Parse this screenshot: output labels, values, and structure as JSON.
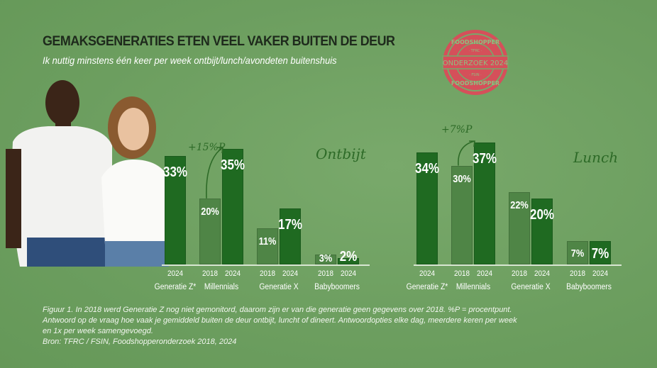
{
  "header": {
    "title": "GEMAKSGENERATIES ETEN VEEL VAKER BUITEN DE DEUR",
    "subtitle": "Ik nuttig minstens één keer per week ontbijt/lunch/avondeten buitenshuis"
  },
  "stamp": {
    "top": "FOODSHOPPER",
    "tfrc": "· TFRC ·",
    "center": "ONDERZOEK 2024",
    "fsin": "· FSIN ·",
    "bottom": "FOODSHOPPER",
    "color": "#d5505a"
  },
  "colors": {
    "bar_2018": "#4f8546",
    "bar_2024": "#1f6a21",
    "background": "#6fa062"
  },
  "chart_data": [
    {
      "type": "bar",
      "title": "Ontbijt",
      "annotation": "+15%P",
      "unit": "%",
      "ylim": [
        0,
        40
      ],
      "groups": [
        {
          "name": "Generatie Z*",
          "bars": [
            {
              "year": "2024",
              "value": 33
            }
          ]
        },
        {
          "name": "Millennials",
          "bars": [
            {
              "year": "2018",
              "value": 20
            },
            {
              "year": "2024",
              "value": 35
            }
          ]
        },
        {
          "name": "Generatie X",
          "bars": [
            {
              "year": "2018",
              "value": 11
            },
            {
              "year": "2024",
              "value": 17
            }
          ]
        },
        {
          "name": "Babyboomers",
          "bars": [
            {
              "year": "2018",
              "value": 3
            },
            {
              "year": "2024",
              "value": 2
            }
          ]
        }
      ]
    },
    {
      "type": "bar",
      "title": "Lunch",
      "annotation": "+7%P",
      "unit": "%",
      "ylim": [
        0,
        40
      ],
      "groups": [
        {
          "name": "Generatie Z*",
          "bars": [
            {
              "year": "2024",
              "value": 34
            }
          ]
        },
        {
          "name": "Millennials",
          "bars": [
            {
              "year": "2018",
              "value": 30
            },
            {
              "year": "2024",
              "value": 37
            }
          ]
        },
        {
          "name": "Generatie X",
          "bars": [
            {
              "year": "2018",
              "value": 22
            },
            {
              "year": "2024",
              "value": 20
            }
          ]
        },
        {
          "name": "Babyboomers",
          "bars": [
            {
              "year": "2018",
              "value": 7
            },
            {
              "year": "2024",
              "value": 7
            }
          ]
        }
      ]
    }
  ],
  "caption": {
    "line1": "Figuur 1. In 2018 werd Generatie Z nog niet gemonitord, daarom zijn er van die generatie geen gegevens over 2018. %P = procentpunt. Antwoord op de vraag hoe vaak je gemiddeld buiten de deur ontbijt, luncht of dineert. Antwoordopties elke dag, meerdere keren per week en 1x per week samengevoegd.",
    "source": "Bron: TFRC / FSIN, Foodshopperonderzoek 2018, 2024"
  }
}
